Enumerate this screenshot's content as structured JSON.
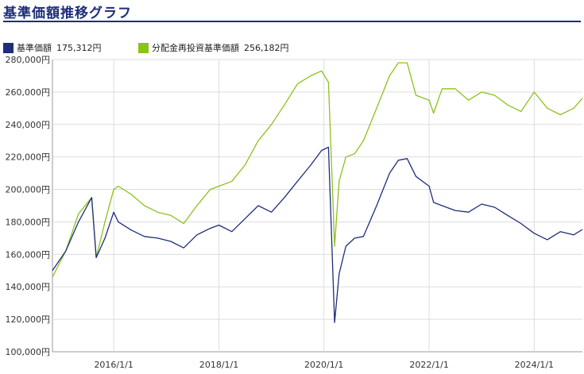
{
  "title": "基準価額推移グラフ",
  "legend": [
    {
      "label": "基準価額",
      "value": "175,312円",
      "color": "#1f2d7a"
    },
    {
      "label": "分配金再投資基準価額",
      "value": "256,182円",
      "color": "#8cc21c"
    }
  ],
  "chart_data": {
    "type": "line",
    "title": "基準価額推移グラフ",
    "xlabel": "",
    "ylabel": "",
    "ylim": [
      100000,
      280000
    ],
    "xlim": [
      "2014-11-01",
      "2024-12-01"
    ],
    "grid": true,
    "legend_position": "top-left",
    "y_ticks": [
      "100,000円",
      "120,000円",
      "140,000円",
      "160,000円",
      "180,000円",
      "200,000円",
      "220,000円",
      "240,000円",
      "260,000円",
      "280,000円"
    ],
    "x_ticks": [
      "2016/1/1",
      "2018/1/1",
      "2020/1/1",
      "2022/1/1",
      "2024/1/1"
    ],
    "x": [
      "2014-11-01",
      "2015-02-01",
      "2015-05-01",
      "2015-08-01",
      "2015-09-01",
      "2015-11-01",
      "2016-01-01",
      "2016-02-01",
      "2016-05-01",
      "2016-08-01",
      "2016-11-01",
      "2017-02-01",
      "2017-05-01",
      "2017-08-01",
      "2017-11-01",
      "2018-01-01",
      "2018-04-01",
      "2018-07-01",
      "2018-10-01",
      "2019-01-01",
      "2019-04-01",
      "2019-07-01",
      "2019-10-01",
      "2019-12-15",
      "2020-02-01",
      "2020-03-15",
      "2020-04-15",
      "2020-06-01",
      "2020-08-01",
      "2020-10-01",
      "2021-01-01",
      "2021-04-01",
      "2021-06-01",
      "2021-08-01",
      "2021-10-01",
      "2022-01-01",
      "2022-02-01",
      "2022-04-01",
      "2022-07-01",
      "2022-10-01",
      "2023-01-01",
      "2023-04-01",
      "2023-07-01",
      "2023-10-01",
      "2024-01-01",
      "2024-04-01",
      "2024-07-01",
      "2024-10-01",
      "2024-12-01"
    ],
    "series": [
      {
        "name": "基準価額",
        "color": "#1f2d7a",
        "values": [
          150000,
          162000,
          180000,
          195000,
          158000,
          170000,
          186000,
          180000,
          175000,
          171000,
          170000,
          168000,
          164000,
          172000,
          176000,
          178000,
          174000,
          182000,
          190000,
          186000,
          195000,
          205000,
          215000,
          224000,
          226000,
          118000,
          148000,
          165000,
          170000,
          171000,
          190000,
          210000,
          218000,
          219000,
          208000,
          202000,
          192000,
          190000,
          187000,
          186000,
          191000,
          189000,
          184000,
          179000,
          173000,
          169000,
          174000,
          172000,
          175312
        ]
      },
      {
        "name": "分配金再投資基準価額",
        "color": "#8cc21c",
        "values": [
          146000,
          162000,
          185000,
          195000,
          158000,
          180000,
          200000,
          202000,
          197000,
          190000,
          186000,
          184000,
          179000,
          190000,
          200000,
          202000,
          205000,
          215000,
          230000,
          240000,
          252000,
          265000,
          270000,
          273000,
          266000,
          165000,
          205000,
          220000,
          222000,
          230000,
          250000,
          270000,
          278000,
          278000,
          258000,
          255000,
          247000,
          262000,
          262000,
          255000,
          260000,
          258000,
          252000,
          248000,
          260000,
          250000,
          246000,
          250000,
          256182
        ]
      }
    ]
  }
}
